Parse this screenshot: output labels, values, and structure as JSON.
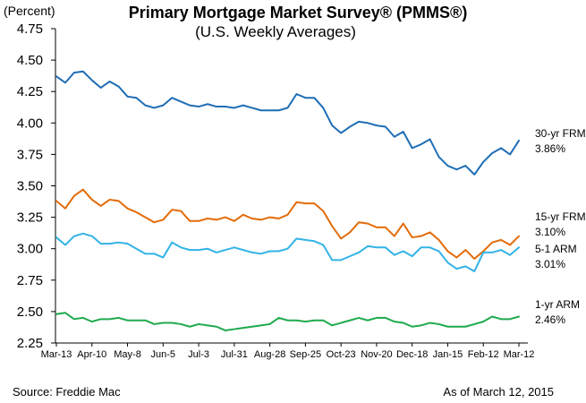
{
  "chart_data": {
    "type": "line",
    "title": "Primary Mortgage Market Survey® (PMMS®)",
    "subtitle": "(U.S. Weekly Averages)",
    "ylabel": "(Percent)",
    "ylim": [
      2.25,
      4.75
    ],
    "yticks": [
      "4.75",
      "4.50",
      "4.25",
      "4.00",
      "3.75",
      "3.50",
      "3.25",
      "3.00",
      "2.75",
      "2.50",
      "2.25"
    ],
    "xticks": [
      "Mar-13",
      "Apr-10",
      "May-8",
      "Jun-5",
      "Jul-3",
      "Jul-31",
      "Aug-28",
      "Sep-25",
      "Oct-23",
      "Nov-20",
      "Dec-18",
      "Jan-15",
      "Feb-12",
      "Mar-12"
    ],
    "x_count": 53,
    "grid": false,
    "series": [
      {
        "name": "30-yr FRM",
        "end_label": "3.86%",
        "color": "#1f6db5",
        "values": [
          4.37,
          4.32,
          4.4,
          4.41,
          4.34,
          4.28,
          4.33,
          4.29,
          4.21,
          4.2,
          4.14,
          4.12,
          4.14,
          4.2,
          4.17,
          4.14,
          4.13,
          4.15,
          4.13,
          4.13,
          4.12,
          4.14,
          4.12,
          4.1,
          4.1,
          4.1,
          4.12,
          4.23,
          4.2,
          4.2,
          4.12,
          3.98,
          3.92,
          3.97,
          4.01,
          4.0,
          3.98,
          3.97,
          3.89,
          3.93,
          3.8,
          3.83,
          3.87,
          3.73,
          3.66,
          3.63,
          3.66,
          3.59,
          3.69,
          3.76,
          3.8,
          3.75,
          3.86
        ]
      },
      {
        "name": "15-yr FRM",
        "end_label": "3.10%",
        "color": "#e36c0a",
        "values": [
          3.38,
          3.32,
          3.42,
          3.47,
          3.39,
          3.34,
          3.39,
          3.38,
          3.32,
          3.29,
          3.25,
          3.21,
          3.23,
          3.31,
          3.3,
          3.22,
          3.22,
          3.24,
          3.23,
          3.25,
          3.22,
          3.27,
          3.24,
          3.23,
          3.25,
          3.24,
          3.27,
          3.37,
          3.36,
          3.36,
          3.3,
          3.18,
          3.08,
          3.13,
          3.21,
          3.2,
          3.17,
          3.17,
          3.1,
          3.2,
          3.09,
          3.1,
          3.13,
          3.07,
          2.98,
          2.93,
          2.99,
          2.92,
          2.98,
          3.05,
          3.07,
          3.03,
          3.1
        ]
      },
      {
        "name": "5-1 ARM",
        "end_label": "3.01%",
        "color": "#33b3e6",
        "values": [
          3.09,
          3.03,
          3.1,
          3.12,
          3.1,
          3.04,
          3.04,
          3.05,
          3.04,
          3.0,
          2.96,
          2.96,
          2.93,
          3.05,
          3.01,
          2.99,
          2.99,
          3.0,
          2.97,
          2.99,
          3.01,
          2.99,
          2.97,
          2.96,
          2.98,
          2.98,
          3.0,
          3.08,
          3.07,
          3.06,
          3.03,
          2.91,
          2.91,
          2.94,
          2.97,
          3.02,
          3.01,
          3.01,
          2.95,
          2.98,
          2.94,
          3.01,
          3.01,
          2.98,
          2.89,
          2.84,
          2.86,
          2.82,
          2.97,
          2.97,
          2.99,
          2.95,
          3.01
        ]
      },
      {
        "name": "1-yr ARM",
        "end_label": "2.46%",
        "color": "#1faa4d",
        "values": [
          2.48,
          2.49,
          2.44,
          2.45,
          2.42,
          2.44,
          2.44,
          2.45,
          2.43,
          2.43,
          2.43,
          2.4,
          2.41,
          2.41,
          2.4,
          2.38,
          2.4,
          2.39,
          2.38,
          2.35,
          2.36,
          2.37,
          2.38,
          2.39,
          2.4,
          2.45,
          2.43,
          2.43,
          2.42,
          2.43,
          2.43,
          2.39,
          2.41,
          2.43,
          2.45,
          2.43,
          2.45,
          2.45,
          2.42,
          2.41,
          2.38,
          2.39,
          2.41,
          2.4,
          2.38,
          2.38,
          2.38,
          2.4,
          2.42,
          2.46,
          2.44,
          2.44,
          2.46
        ]
      }
    ],
    "source": "Source: Freddie Mac",
    "asof": "As of March 12, 2015"
  }
}
